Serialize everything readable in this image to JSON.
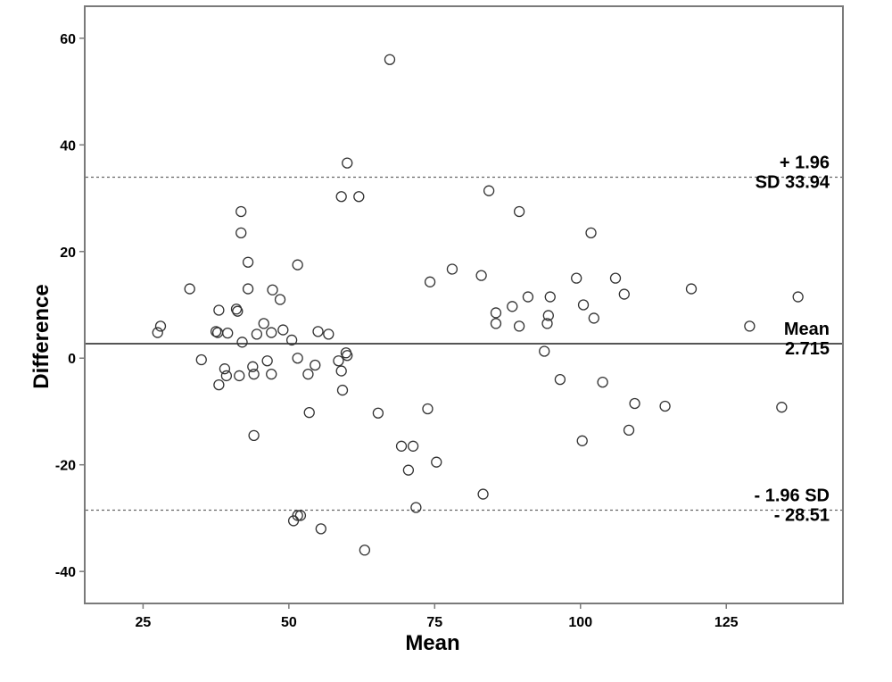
{
  "chart_data": {
    "type": "scatter",
    "xlabel": "Mean",
    "ylabel": "Difference",
    "xlim": [
      15,
      145
    ],
    "ylim": [
      -46,
      66
    ],
    "x_ticks": [
      25,
      50,
      75,
      100,
      125
    ],
    "y_ticks": [
      60,
      40,
      20,
      0,
      -20,
      -40
    ],
    "grid": false,
    "reference_lines": [
      {
        "name": "upper",
        "value": 33.94,
        "style": "dashed",
        "label_lines": [
          "+ 1.96",
          "SD 33.94"
        ]
      },
      {
        "name": "mean",
        "value": 2.715,
        "style": "solid",
        "label_lines": [
          "Mean",
          "2.715"
        ]
      },
      {
        "name": "lower",
        "value": -28.51,
        "style": "dashed",
        "label_lines": [
          "- 1.96 SD",
          "- 28.51"
        ]
      }
    ],
    "points": [
      [
        27.5,
        4.8
      ],
      [
        28,
        6
      ],
      [
        33,
        13
      ],
      [
        35,
        -0.3
      ],
      [
        37.5,
        5
      ],
      [
        37.8,
        4.8
      ],
      [
        38,
        9
      ],
      [
        38,
        -5
      ],
      [
        39,
        -2
      ],
      [
        39.3,
        -3.3
      ],
      [
        39.5,
        4.7
      ],
      [
        41,
        9.2
      ],
      [
        41.2,
        8.8
      ],
      [
        41.5,
        -3.3
      ],
      [
        41.8,
        27.5
      ],
      [
        41.8,
        23.5
      ],
      [
        42,
        3
      ],
      [
        43,
        18
      ],
      [
        43,
        13
      ],
      [
        43.8,
        -1.6
      ],
      [
        44,
        -3
      ],
      [
        44,
        -14.5
      ],
      [
        44.5,
        4.5
      ],
      [
        45.7,
        6.5
      ],
      [
        46.3,
        -0.5
      ],
      [
        47,
        4.8
      ],
      [
        47,
        -3
      ],
      [
        47.2,
        12.8
      ],
      [
        48.5,
        11
      ],
      [
        49,
        5.3
      ],
      [
        50.5,
        3.4
      ],
      [
        50.8,
        -30.5
      ],
      [
        51.5,
        -29.5
      ],
      [
        51.5,
        17.5
      ],
      [
        51.5,
        0
      ],
      [
        52,
        -29.5
      ],
      [
        53.3,
        -3
      ],
      [
        53.5,
        -10.2
      ],
      [
        54.5,
        -1.3
      ],
      [
        55,
        5
      ],
      [
        55.5,
        -32
      ],
      [
        56.8,
        4.5
      ],
      [
        58.5,
        -0.5
      ],
      [
        59,
        -2.4
      ],
      [
        59,
        30.3
      ],
      [
        59.2,
        -6
      ],
      [
        59.8,
        1
      ],
      [
        60,
        36.6
      ],
      [
        60,
        0.5
      ],
      [
        62,
        30.3
      ],
      [
        63,
        -36
      ],
      [
        65.3,
        -10.3
      ],
      [
        67.3,
        56
      ],
      [
        69.3,
        -16.5
      ],
      [
        70.5,
        -21
      ],
      [
        71.3,
        -16.5
      ],
      [
        71.8,
        -28
      ],
      [
        73.8,
        -9.5
      ],
      [
        74.2,
        14.3
      ],
      [
        75.3,
        -19.5
      ],
      [
        78,
        16.7
      ],
      [
        83,
        15.5
      ],
      [
        83.3,
        -25.5
      ],
      [
        84.3,
        31.4
      ],
      [
        85.5,
        8.5
      ],
      [
        85.5,
        6.5
      ],
      [
        88.3,
        9.7
      ],
      [
        89.5,
        27.5
      ],
      [
        89.5,
        6
      ],
      [
        91,
        11.5
      ],
      [
        93.8,
        1.3
      ],
      [
        94.3,
        6.5
      ],
      [
        94.5,
        8
      ],
      [
        94.8,
        11.5
      ],
      [
        96.5,
        -4
      ],
      [
        99.3,
        15
      ],
      [
        100.3,
        -15.5
      ],
      [
        100.5,
        10
      ],
      [
        101.8,
        23.5
      ],
      [
        102.3,
        7.5
      ],
      [
        103.8,
        -4.5
      ],
      [
        106,
        15
      ],
      [
        107.5,
        12
      ],
      [
        108.3,
        -13.5
      ],
      [
        109.3,
        -8.5
      ],
      [
        114.5,
        -9
      ],
      [
        119,
        13
      ],
      [
        129,
        6
      ],
      [
        134.5,
        -9.2
      ],
      [
        137.3,
        11.5
      ]
    ]
  }
}
